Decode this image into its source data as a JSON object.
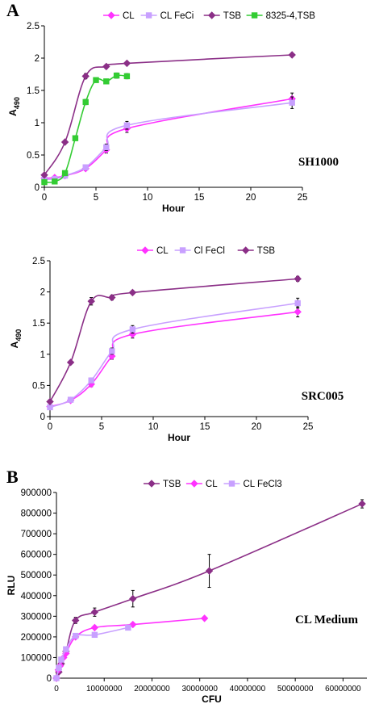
{
  "chart_data": [
    {
      "type": "line",
      "panel_label": "A",
      "annotation": "SH1000",
      "xlabel": "Hour",
      "ylabel_main": "A",
      "ylabel_sub": "490",
      "xlim": [
        0,
        25
      ],
      "ylim": [
        0,
        2.5
      ],
      "xticks": [
        "0",
        "5",
        "10",
        "15",
        "20",
        "25"
      ],
      "yticks": [
        "0",
        "0.5",
        "1",
        "1.5",
        "2",
        "2.5"
      ],
      "grid": false,
      "legend_position": "top",
      "series": [
        {
          "name": "CL",
          "color": "#ff33ff",
          "marker": "diamond",
          "x": [
            0,
            1,
            2,
            4,
            6,
            8,
            24
          ],
          "y": [
            0.14,
            0.15,
            0.18,
            0.29,
            0.58,
            0.91,
            1.37
          ],
          "err": [
            0.02,
            0.02,
            0.02,
            0.03,
            0.05,
            0.06,
            0.09
          ]
        },
        {
          "name": "CL FeCi",
          "color": "#c8a0ff",
          "marker": "square",
          "x": [
            0,
            1,
            2,
            4,
            6,
            8,
            24
          ],
          "y": [
            0.12,
            0.13,
            0.18,
            0.31,
            0.62,
            0.96,
            1.31
          ],
          "err": [
            0.02,
            0.02,
            0.02,
            0.03,
            0.05,
            0.06,
            0.09
          ]
        },
        {
          "name": "TSB",
          "color": "#8b2f87",
          "marker": "diamond",
          "x": [
            0,
            2,
            4,
            6,
            8,
            24
          ],
          "y": [
            0.19,
            0.7,
            1.72,
            1.87,
            1.92,
            2.05
          ],
          "err": [
            0.02,
            0.02,
            0.04,
            0.03,
            0.02,
            0.02
          ]
        },
        {
          "name": "8325-4,TSB",
          "color": "#33cc33",
          "marker": "square",
          "x": [
            0,
            1,
            2,
            3,
            4,
            5,
            6,
            7,
            8
          ],
          "y": [
            0.08,
            0.09,
            0.22,
            0.76,
            1.32,
            1.66,
            1.64,
            1.73,
            1.72
          ],
          "err": [
            0.01,
            0.01,
            0.02,
            0.03,
            0.04,
            0.03,
            0.03,
            0.04,
            0.04
          ]
        }
      ]
    },
    {
      "type": "line",
      "panel_label": "",
      "annotation": "SRC005",
      "xlabel": "Hour",
      "ylabel_main": "A",
      "ylabel_sub": "490",
      "xlim": [
        0,
        25
      ],
      "ylim": [
        0,
        2.5
      ],
      "xticks": [
        "0",
        "5",
        "10",
        "15",
        "20",
        "25"
      ],
      "yticks": [
        "0",
        "0.5",
        "1",
        "1.5",
        "2",
        "2.5"
      ],
      "grid": false,
      "legend_position": "top",
      "series": [
        {
          "name": "CL",
          "color": "#ff33ff",
          "marker": "diamond",
          "x": [
            0,
            2,
            4,
            6,
            8,
            24
          ],
          "y": [
            0.16,
            0.26,
            0.52,
            0.97,
            1.32,
            1.68
          ],
          "err": [
            0.02,
            0.02,
            0.04,
            0.05,
            0.06,
            0.08
          ]
        },
        {
          "name": "Cl FeCl",
          "color": "#c8a0ff",
          "marker": "square",
          "x": [
            0,
            2,
            4,
            6,
            8,
            24
          ],
          "y": [
            0.15,
            0.27,
            0.58,
            1.05,
            1.4,
            1.82
          ],
          "err": [
            0.02,
            0.02,
            0.04,
            0.05,
            0.06,
            0.08
          ]
        },
        {
          "name": "TSB",
          "color": "#8b2f87",
          "marker": "diamond",
          "x": [
            0,
            2,
            4,
            6,
            8,
            24
          ],
          "y": [
            0.24,
            0.87,
            1.85,
            1.91,
            1.99,
            2.21
          ],
          "err": [
            0.02,
            0.02,
            0.06,
            0.04,
            0.02,
            0.04
          ]
        }
      ]
    },
    {
      "type": "line",
      "panel_label": "B",
      "annotation": "CL Medium",
      "xlabel": "CFU",
      "ylabel_main": "RLU",
      "ylabel_sub": "",
      "xlim": [
        0,
        65000000
      ],
      "ylim": [
        0,
        900000
      ],
      "xticks": [
        "0",
        "10000000",
        "20000000",
        "30000000",
        "40000000",
        "50000000",
        "60000000"
      ],
      "yticks": [
        "0",
        "100000",
        "200000",
        "300000",
        "400000",
        "500000",
        "600000",
        "700000",
        "800000",
        "900000"
      ],
      "grid": false,
      "legend_position": "top",
      "series": [
        {
          "name": "TSB",
          "color": "#8b2f87",
          "marker": "diamond",
          "x": [
            0,
            500000,
            1000000,
            2000000,
            4000000,
            8000000,
            16000000,
            32000000,
            64000000
          ],
          "y": [
            0,
            30000,
            70000,
            130000,
            280000,
            320000,
            385000,
            520000,
            845000
          ],
          "err": [
            0,
            3000,
            5000,
            8000,
            15000,
            20000,
            40000,
            80000,
            20000
          ]
        },
        {
          "name": "CL",
          "color": "#ff33ff",
          "marker": "diamond",
          "x": [
            0,
            400000,
            800000,
            1500000,
            2000000,
            4000000,
            8000000,
            16000000,
            31000000
          ],
          "y": [
            0,
            40000,
            60000,
            100000,
            120000,
            200000,
            245000,
            260000,
            290000
          ],
          "err": [
            0,
            3000,
            4000,
            6000,
            6000,
            8000,
            8000,
            8000,
            5000
          ]
        },
        {
          "name": "CL FeCl3",
          "color": "#c8a0ff",
          "marker": "square",
          "x": [
            0,
            500000,
            1000000,
            2000000,
            4000000,
            8000000,
            15000000
          ],
          "y": [
            0,
            50000,
            90000,
            140000,
            205000,
            210000,
            245000
          ],
          "err": [
            0,
            4000,
            6000,
            8000,
            8000,
            8000,
            10000
          ]
        }
      ]
    }
  ]
}
